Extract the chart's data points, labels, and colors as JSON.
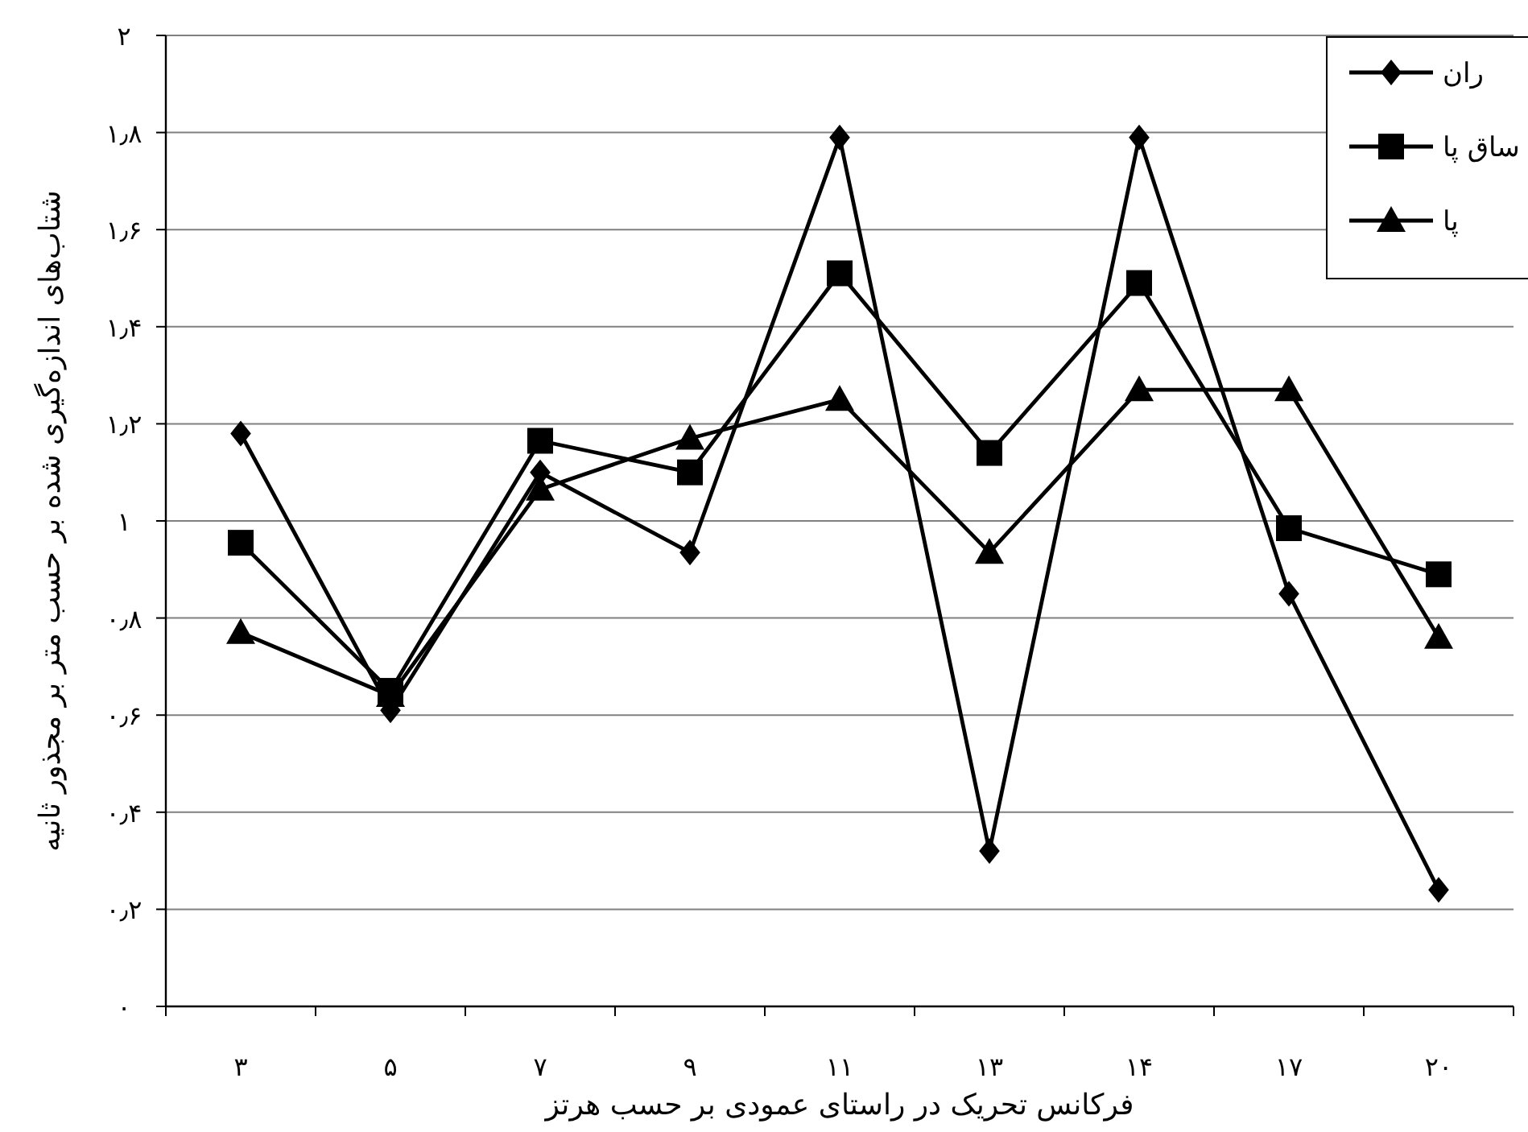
{
  "chart_data": {
    "type": "line",
    "xlabel": "فرکانس تحریک در راستای عمودی بر حسب هرتز",
    "ylabel": "شتاب‌های اندازه‌گیری شده بر حسب متر بر مجذور ثانیه",
    "categories": [
      "۳",
      "۵",
      "۷",
      "۹",
      "۱۱",
      "۱۳",
      "۱۴",
      "۱۷",
      "۲۰"
    ],
    "series": [
      {
        "name": "ران",
        "color": "#000000",
        "marker": "diamond",
        "values": [
          1.18,
          0.61,
          1.1,
          0.935,
          1.79,
          0.32,
          1.79,
          0.85,
          0.24
        ]
      },
      {
        "name": "ساق پا",
        "color": "#000000",
        "marker": "square",
        "values": [
          0.955,
          0.65,
          1.165,
          1.1,
          1.51,
          1.14,
          1.49,
          0.985,
          0.89
        ]
      },
      {
        "name": "پا",
        "color": "#000000",
        "marker": "triangle",
        "values": [
          0.77,
          0.64,
          1.065,
          1.17,
          1.25,
          0.935,
          1.27,
          1.27,
          0.76
        ]
      }
    ],
    "ylim": [
      0,
      2
    ],
    "yticks": [
      {
        "value": 0,
        "label": "۰"
      },
      {
        "value": 0.2,
        "label": "۰٫۲"
      },
      {
        "value": 0.4,
        "label": "۰٫۴"
      },
      {
        "value": 0.6,
        "label": "۰٫۶"
      },
      {
        "value": 0.8,
        "label": "۰٫۸"
      },
      {
        "value": 1,
        "label": "۱"
      },
      {
        "value": 1.2,
        "label": "۱٫۲"
      },
      {
        "value": 1.4,
        "label": "۱٫۴"
      },
      {
        "value": 1.6,
        "label": "۱٫۶"
      },
      {
        "value": 1.8,
        "label": "۱٫۸"
      },
      {
        "value": 2,
        "label": "۲"
      }
    ],
    "grid": "y",
    "legend": "top right",
    "line_style": "solid"
  }
}
